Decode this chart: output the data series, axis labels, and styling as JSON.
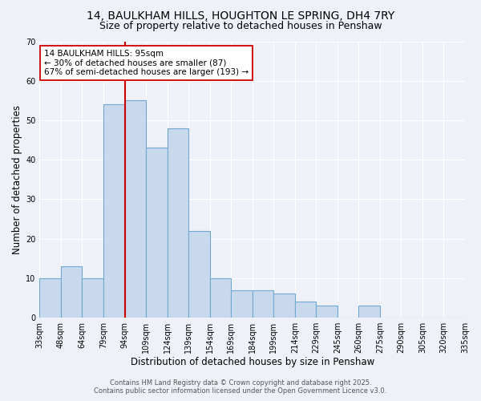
{
  "title": "14, BAULKHAM HILLS, HOUGHTON LE SPRING, DH4 7RY",
  "subtitle": "Size of property relative to detached houses in Penshaw",
  "xlabel": "Distribution of detached houses by size in Penshaw",
  "ylabel": "Number of detached properties",
  "bins": [
    "33sqm",
    "48sqm",
    "64sqm",
    "79sqm",
    "94sqm",
    "109sqm",
    "124sqm",
    "139sqm",
    "154sqm",
    "169sqm",
    "184sqm",
    "199sqm",
    "214sqm",
    "229sqm",
    "245sqm",
    "260sqm",
    "275sqm",
    "290sqm",
    "305sqm",
    "320sqm",
    "335sqm"
  ],
  "values": [
    10,
    13,
    10,
    54,
    55,
    43,
    48,
    22,
    10,
    7,
    7,
    6,
    4,
    3,
    0,
    3,
    0,
    0,
    0,
    0
  ],
  "bar_color": "#c8d9ed",
  "bar_edge_color": "#6fa8d0",
  "vline_x": 3.5,
  "vline_color": "#cc0000",
  "annotation_title": "14 BAULKHAM HILLS: 95sqm",
  "annotation_line1": "← 30% of detached houses are smaller (87)",
  "annotation_line2": "67% of semi-detached houses are larger (193) →",
  "annotation_box_color": "#ffffff",
  "annotation_box_edge": "#cc0000",
  "ylim": [
    0,
    70
  ],
  "yticks": [
    0,
    10,
    20,
    30,
    40,
    50,
    60,
    70
  ],
  "footer1": "Contains HM Land Registry data © Crown copyright and database right 2025.",
  "footer2": "Contains public sector information licensed under the Open Government Licence v3.0.",
  "bg_color": "#eef2f8",
  "title_fontsize": 10,
  "subtitle_fontsize": 9,
  "axis_fontsize": 8.5,
  "tick_fontsize": 7,
  "footer_fontsize": 6,
  "ann_fontsize": 7.5
}
